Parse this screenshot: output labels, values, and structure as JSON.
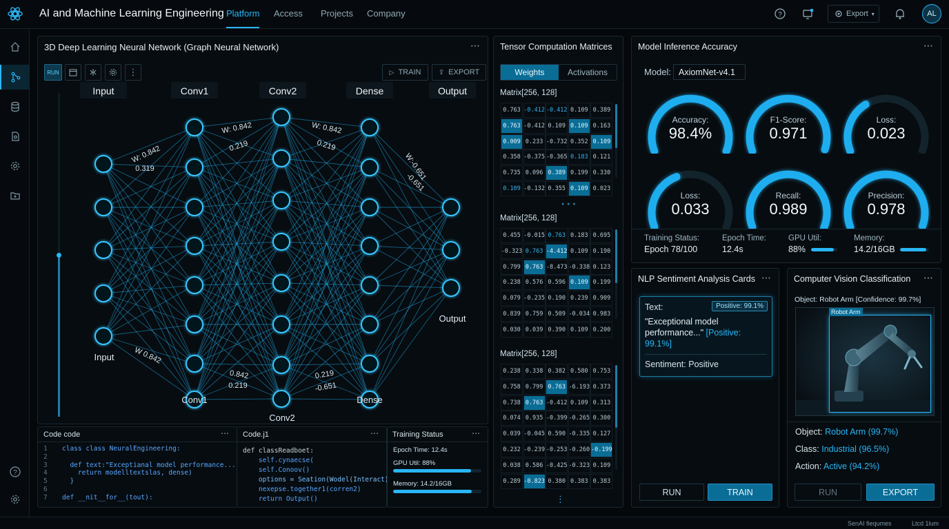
{
  "app": {
    "title": "AI and Machine Learning Engineering"
  },
  "nav": {
    "items": [
      "Platform",
      "Access",
      "Projects",
      "Company"
    ],
    "active": "Platform"
  },
  "header": {
    "export_label": "Export",
    "avatar_initials": "AL"
  },
  "network": {
    "title": "3D Deep Learning Neural Network  (Graph Neural Network)",
    "toolbar": {
      "run": "RUN",
      "train": "TRAIN",
      "export": "EXPORT"
    },
    "layers": [
      "Input",
      "Conv1",
      "Conv2",
      "Dense",
      "Output"
    ],
    "bottom_labels": [
      "Input",
      "Conv1",
      "Conv2",
      "Dense",
      "Output"
    ],
    "weights": [
      "W: 0.842",
      "0.319",
      "W: 0.842",
      "0.219",
      "W: 0.842",
      "0.219",
      "W:-0.651",
      "-0.651",
      "W 0.842",
      "0.842",
      "0.219",
      "0.219",
      "-0.651"
    ],
    "progress": 0.5
  },
  "code1": {
    "title": "Code code",
    "lines": [
      [
        "1",
        "class class NeuralEngineering:"
      ],
      [
        "2",
        ""
      ],
      [
        "3",
        "  def text:\"Exceptianal model performance...\":"
      ],
      [
        "4",
        "    return modelltextslas, dense)"
      ],
      [
        "5",
        "  }"
      ],
      [
        "6",
        ""
      ],
      [
        "7",
        "def __nit__for__(tout):"
      ]
    ]
  },
  "code2": {
    "title": "Code.j1",
    "lines": [
      "def classReadboet:",
      "    self.cynaecse(",
      "    self.Conoov()",
      "    options = Seation(Wodel(Interact)",
      "    nexepse.together1(corren2)",
      "    return Output()"
    ]
  },
  "training_mini": {
    "title": "Training Status",
    "epoch_time": "Epoch Time: 12.4s",
    "gpu": "GPU Util: 88%",
    "gpu_value": 0.88,
    "memory": "Memory: 14.2/16GB",
    "memory_value": 0.89
  },
  "tensor": {
    "title": "Tensor Computation Matrices",
    "tabs": [
      "Weights",
      "Activations"
    ],
    "active_tab": "Weights",
    "matrices": [
      {
        "label": "Matrix[256, 128]",
        "rows": [
          [
            "0.763",
            "-0.412",
            "-0.412",
            "0.109",
            "0.389"
          ],
          [
            "0.763",
            "-0.412",
            "0.109",
            "0.109",
            "0.163"
          ],
          [
            "0.009",
            "0.233",
            "-0.732",
            "0.352",
            "0.109"
          ],
          [
            "0.358",
            "-0.375",
            "-0.365",
            "0.183",
            "0.121"
          ],
          [
            "0.735",
            "0.096",
            "0.389",
            "0.199",
            "0.330"
          ],
          [
            "0.109",
            "-0.132",
            "0.355",
            "0.109",
            "0.023"
          ]
        ],
        "hi": [
          [
            1,
            0
          ],
          [
            2,
            0
          ],
          [
            1,
            3
          ],
          [
            2,
            4
          ],
          [
            4,
            2
          ],
          [
            5,
            3
          ]
        ],
        "mid": [
          [
            0,
            1
          ],
          [
            0,
            2
          ],
          [
            3,
            3
          ],
          [
            5,
            0
          ]
        ]
      },
      {
        "label": "Matrix[256, 128]",
        "rows": [
          [
            "0.455",
            "-0.015",
            "0.763",
            "0.183",
            "0.695"
          ],
          [
            "-0.323",
            "0.763",
            "-4.412",
            "0.109",
            "0.190"
          ],
          [
            "0.799",
            "0.763",
            "-8.473",
            "-0.338",
            "0.123"
          ],
          [
            "0.238",
            "0.576",
            "0.596",
            "0.109",
            "0.199"
          ],
          [
            "0.079",
            "-0.235",
            "0.190",
            "0.239",
            "0.909"
          ],
          [
            "0.839",
            "0.759",
            "0.509",
            "-0.034",
            "0.983"
          ],
          [
            "0.030",
            "0.039",
            "0.390",
            "0.109",
            "0.200"
          ]
        ],
        "hi": [
          [
            1,
            2
          ],
          [
            2,
            1
          ],
          [
            3,
            3
          ]
        ],
        "mid": [
          [
            0,
            2
          ],
          [
            1,
            1
          ]
        ]
      },
      {
        "label": "Matrix[256, 128]",
        "rows": [
          [
            "0.238",
            "0.338",
            "0.382",
            "0.580",
            "0.753"
          ],
          [
            "0.758",
            "0.799",
            "0.763",
            "-6.193",
            "0.373"
          ],
          [
            "0.738",
            "0.763",
            "-0.412",
            "0.109",
            "0.313"
          ],
          [
            "0.074",
            "0.935",
            "-0.399",
            "-0.265",
            "0.300"
          ],
          [
            "0.039",
            "-0.045",
            "0.590",
            "-0.335",
            "0.127"
          ],
          [
            "0.232",
            "-0.239",
            "-0.253",
            "-0.260",
            "-0.199"
          ],
          [
            "0.038",
            "0.586",
            "-0.425",
            "-0.323",
            "0.109"
          ],
          [
            "0.289",
            "-0.823",
            "0.380",
            "0.383",
            "0.383"
          ]
        ],
        "hi": [
          [
            1,
            2
          ],
          [
            2,
            1
          ],
          [
            5,
            4
          ],
          [
            7,
            1
          ]
        ],
        "mid": []
      }
    ]
  },
  "inference": {
    "title": "Model Inference Accuracy",
    "model_label": "Model:",
    "model_value": "AxiomNet-v4.1",
    "gauges": [
      {
        "label": "Accuracy:",
        "value": "98.4%",
        "fraction": 0.984
      },
      {
        "label": "F1-Score:",
        "value": "0.971",
        "fraction": 0.971
      },
      {
        "label": "Loss:",
        "value": "0.023",
        "fraction": 0.35
      },
      {
        "label": "Loss:",
        "value": "0.033",
        "fraction": 0.4
      },
      {
        "label": "Recall:",
        "value": "0.989",
        "fraction": 0.989
      },
      {
        "label": "Precision:",
        "value": "0.978",
        "fraction": 0.978
      }
    ],
    "stats": [
      {
        "label": "Training Status:",
        "value": "Epoch 78/100"
      },
      {
        "label": "Epoch Time:",
        "value": "12.4s"
      },
      {
        "label": "GPU Util:",
        "value": "88%",
        "fraction": 0.88
      },
      {
        "label": "Memory:",
        "value": "14.2/16GB",
        "fraction": 0.89
      }
    ]
  },
  "nlp": {
    "title": "NLP Sentiment Analysis Cards",
    "text_label": "Text:",
    "badge": "Positive: 99.1%",
    "quote": "\"Exceptional model performance...\"",
    "quote_tag": "[Positive: 99.1%]",
    "sentiment": "Sentiment: Positive",
    "run": "RUN",
    "train": "TRAIN"
  },
  "cv": {
    "title": "Computer Vision Classification",
    "object_conf": "Object: Robot Arm [Confidence: 99.7%]",
    "bbox_label": "Robot Arm",
    "rows": [
      {
        "label": "Object:",
        "value": "Robot Arm (99.7%)"
      },
      {
        "label": "Class:",
        "value": "Industrial (96.5%)"
      },
      {
        "label": "Action:",
        "value": "Active (94.2%)"
      }
    ],
    "run": "RUN",
    "export": "EXPORT"
  },
  "footer": {
    "left": "SenAI fiequmes",
    "right": "Ltcd 1lum"
  }
}
